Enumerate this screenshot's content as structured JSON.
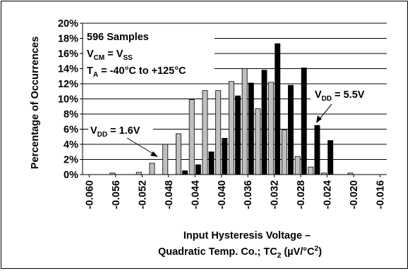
{
  "chart_data": {
    "type": "bar",
    "ylabel": "Percentage of Occurrences",
    "xlabel_line1": "Input Hysteresis Voltage –",
    "xlabel_line2_prefix": "Quadratic Temp. Co.; TC",
    "xlabel_line2_sub": "2",
    "xlabel_line2_units": " (µV/°C",
    "xlabel_line2_sup": "2",
    "xlabel_line2_close": ")",
    "ylim": [
      0,
      20
    ],
    "yticks": [
      "0%",
      "2%",
      "4%",
      "6%",
      "8%",
      "10%",
      "12%",
      "14%",
      "16%",
      "18%",
      "20%"
    ],
    "xlim": [
      -0.061,
      -0.015
    ],
    "xticks": [
      "-0.060",
      "-0.056",
      "-0.052",
      "-0.048",
      "-0.044",
      "-0.040",
      "-0.036",
      "-0.032",
      "-0.028",
      "-0.024",
      "-0.020",
      "-0.016"
    ],
    "bin_width": 0.002,
    "series": [
      {
        "name": "VDD = 1.6V",
        "color": "#bfbfbf",
        "x": [
          -0.056,
          -0.052,
          -0.05,
          -0.048,
          -0.046,
          -0.044,
          -0.042,
          -0.04,
          -0.038,
          -0.036,
          -0.034,
          -0.032,
          -0.03,
          -0.028,
          -0.026,
          -0.024,
          -0.02
        ],
        "values": [
          0.2,
          0.3,
          1.5,
          4.0,
          5.4,
          9.9,
          11.1,
          11.1,
          12.3,
          14.0,
          8.7,
          12.2,
          5.9,
          2.4,
          1.0,
          0.2,
          0.2
        ]
      },
      {
        "name": "VDD = 5.5V",
        "color": "#000000",
        "x": [
          -0.046,
          -0.044,
          -0.042,
          -0.04,
          -0.038,
          -0.036,
          -0.034,
          -0.032,
          -0.03,
          -0.028,
          -0.026,
          -0.024
        ],
        "values": [
          0.5,
          1.3,
          3.0,
          4.8,
          10.4,
          12.1,
          13.8,
          17.3,
          11.8,
          14.1,
          6.5,
          4.5
        ]
      }
    ],
    "annotations": {
      "samples": "596 Samples",
      "vcm_main": "V",
      "vcm_sub": "CM",
      "vcm_eq": " = V",
      "vcm_sub2": "SS",
      "ta_main": "T",
      "ta_sub": "A",
      "ta_rest": " = -40°C to +125°C",
      "vdd_low_main": "V",
      "vdd_low_sub": "DD",
      "vdd_low_rest": " = 1.6V",
      "vdd_high_main": "V",
      "vdd_high_sub": "DD",
      "vdd_high_rest": " = 5.5V"
    },
    "grid": true
  }
}
